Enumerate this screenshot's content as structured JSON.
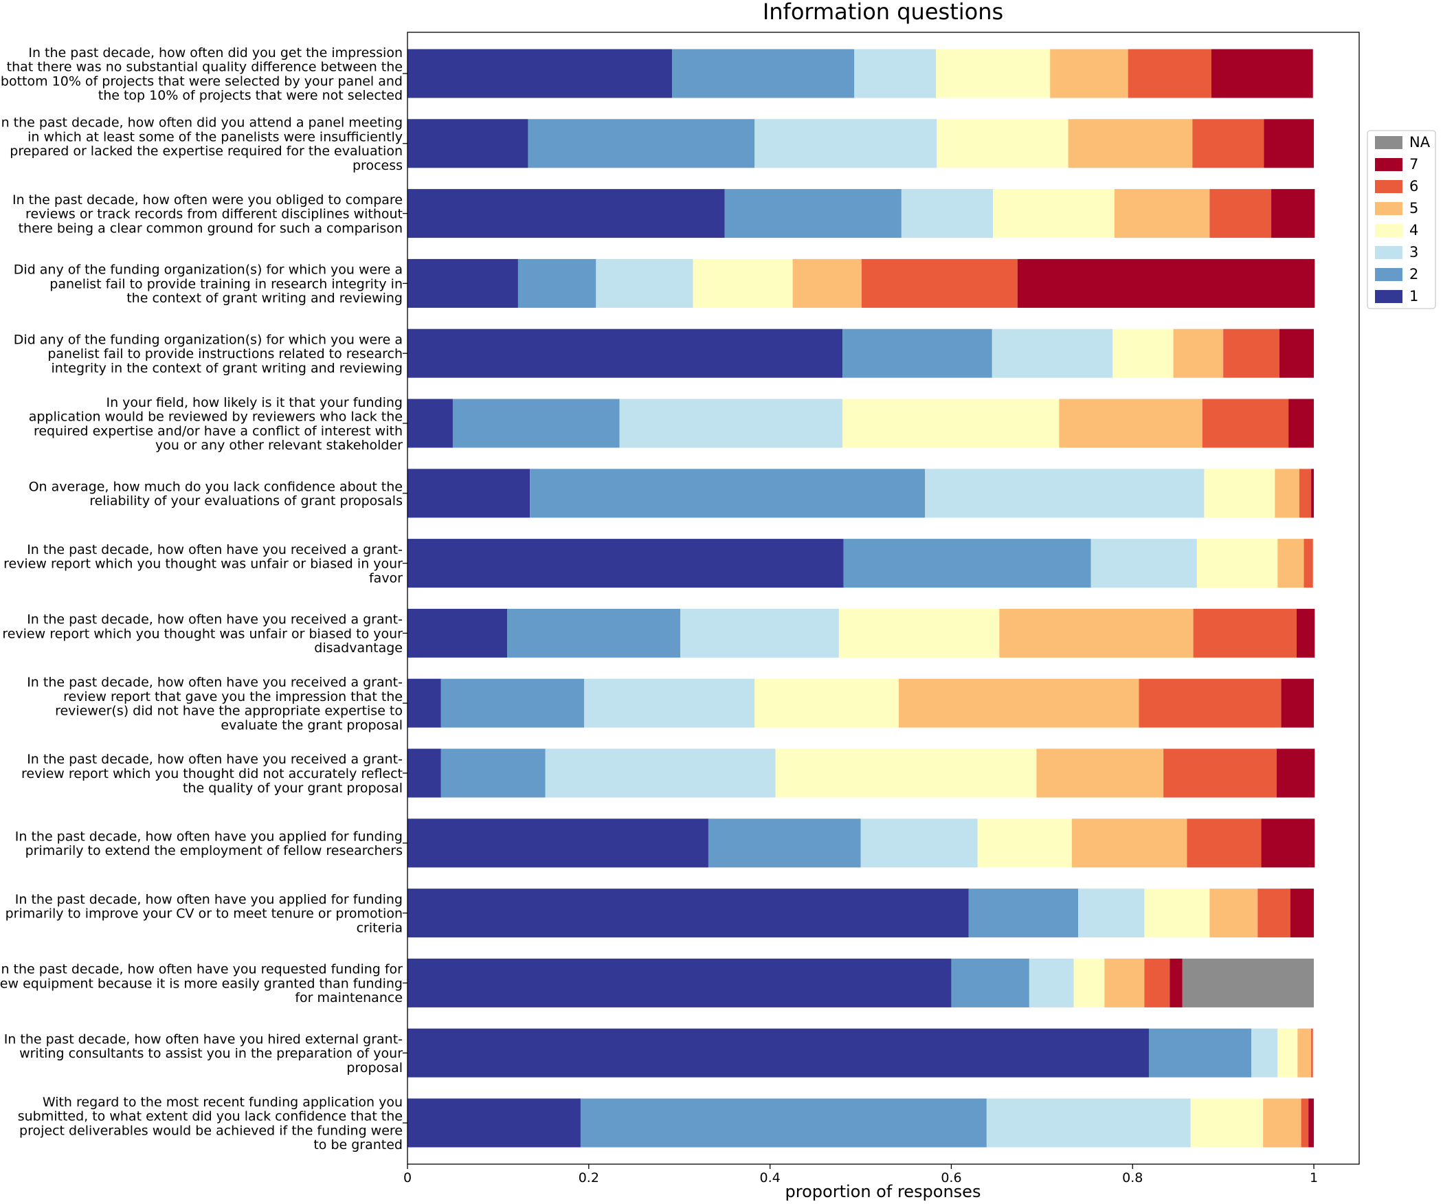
{
  "chart_data": {
    "type": "stacked-barh",
    "title": "Information questions",
    "x_label": "proportion of responses",
    "categories": [
      "In the past decade, how often did you get the impression\nthat there was no substantial quality difference between the\nbottom 10% of projects that were selected by your panel and\nthe top 10% of projects that were not selected",
      "In the past decade, how often did you attend a panel meeting\nin which at least some of the panelists were insufficiently\nprepared or lacked the expertise required for the evaluation\nprocess",
      "In the past decade, how often were you obliged to compare\nreviews or track records from different disciplines without\nthere being a clear common ground for such a comparison",
      "Did any of the funding organization(s) for which you were a\npanelist fail to provide training in research integrity in\nthe context of grant writing and reviewing",
      "Did any of the funding organization(s) for which you were a\npanelist fail to provide instructions related to research\nintegrity in the context of grant writing and reviewing",
      "In your field, how likely is it that your funding\napplication would be reviewed by reviewers who lack the\nrequired expertise and/or have a conflict of interest with\nyou or any other relevant stakeholder",
      "On average, how much do you lack confidence about the\nreliability of your evaluations of grant proposals",
      "In the past decade, how often have you received a grant-\nreview report which you thought was unfair or biased in your\nfavor",
      "In the past decade, how often have you received a grant-\nreview report which you thought was unfair or biased to your\ndisadvantage",
      "In the past decade, how often have you received a grant-\nreview report that gave you the impression that the\nreviewer(s) did not have the appropriate expertise to\nevaluate the grant proposal",
      "In the past decade, how often have you received a grant-\nreview report which you thought did not accurately reflect\nthe quality of your grant proposal",
      "In the past decade, how often have you applied for funding\nprimarily to extend the employment of fellow researchers",
      "In the past decade, how often have you applied for funding\nprimarily to improve your CV or to meet tenure or promotion\ncriteria",
      "In the past decade, how often have you requested funding for\nnew equipment because it is more easily granted than funding\nfor maintenance",
      "In the past decade, how often have you hired external grant-\nwriting consultants to assist you in the preparation of your\nproposal",
      "With regard to the most recent funding application you\nsubmitted, to what extent did you lack confidence that the\nproject deliverables would be achieved if the funding were\nto be granted"
    ],
    "series": [
      {
        "name": "1",
        "color": "#323894",
        "values": [
          0.292,
          0.133,
          0.35,
          0.122,
          0.48,
          0.05,
          0.135,
          0.481,
          0.11,
          0.037,
          0.037,
          0.332,
          0.619,
          0.6,
          0.818,
          0.191
        ]
      },
      {
        "name": "2",
        "color": "#659bc9",
        "values": [
          0.201,
          0.25,
          0.195,
          0.086,
          0.165,
          0.184,
          0.436,
          0.273,
          0.191,
          0.158,
          0.115,
          0.168,
          0.121,
          0.086,
          0.113,
          0.448
        ]
      },
      {
        "name": "3",
        "color": "#c0e2ee",
        "values": [
          0.09,
          0.201,
          0.101,
          0.107,
          0.133,
          0.246,
          0.308,
          0.117,
          0.175,
          0.188,
          0.254,
          0.129,
          0.073,
          0.049,
          0.029,
          0.225
        ]
      },
      {
        "name": "4",
        "color": "#fefec0",
        "values": [
          0.126,
          0.145,
          0.134,
          0.11,
          0.067,
          0.239,
          0.078,
          0.089,
          0.177,
          0.159,
          0.288,
          0.104,
          0.072,
          0.034,
          0.022,
          0.08
        ]
      },
      {
        "name": "5",
        "color": "#fcbd74",
        "values": [
          0.086,
          0.137,
          0.105,
          0.076,
          0.055,
          0.158,
          0.027,
          0.029,
          0.214,
          0.265,
          0.14,
          0.127,
          0.053,
          0.044,
          0.015,
          0.042
        ]
      },
      {
        "name": "6",
        "color": "#ea5b3c",
        "values": [
          0.092,
          0.079,
          0.068,
          0.172,
          0.062,
          0.095,
          0.013,
          0.01,
          0.114,
          0.157,
          0.125,
          0.082,
          0.036,
          0.028,
          0.002,
          0.008
        ]
      },
      {
        "name": "7",
        "color": "#a50026",
        "values": [
          0.112,
          0.055,
          0.048,
          0.328,
          0.038,
          0.028,
          0.003,
          0,
          0.02,
          0.036,
          0.042,
          0.059,
          0.026,
          0.014,
          0,
          0.006
        ]
      },
      {
        "name": "NA",
        "color": "#8c8c8c",
        "values": [
          0,
          0,
          0,
          0,
          0,
          0,
          0,
          0,
          0,
          0,
          0,
          0,
          0,
          0.145,
          0,
          0
        ]
      }
    ],
    "xlim": [
      0,
      1.05
    ],
    "xticks": [
      0,
      0.2,
      0.4,
      0.6,
      0.8,
      1
    ],
    "legend": "right"
  }
}
